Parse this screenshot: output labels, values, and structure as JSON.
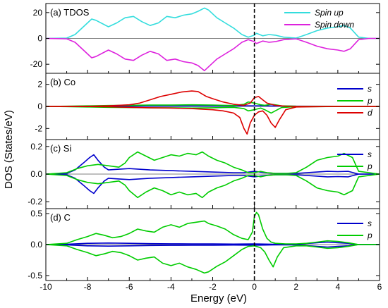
{
  "figure": {
    "xlabel": "Energy (eV)",
    "ylabel": "DOS (States/eV)",
    "x_ticks": [
      "-10",
      "-8",
      "-6",
      "-4",
      "-2",
      "0",
      "2",
      "4",
      "6"
    ]
  },
  "chart_data": [
    {
      "type": "line",
      "panel_label": "(a) TDOS",
      "xlim": [
        -10,
        6
      ],
      "ylim": [
        -27,
        27
      ],
      "y_ticks": [
        20,
        0,
        -20
      ],
      "y_tick_labels": [
        "20",
        "0",
        "-20"
      ],
      "fermi_level": 0,
      "legend_position": "top-right",
      "series": [
        {
          "name": "Spin up",
          "color": "#33dddd",
          "x": [
            -10,
            -9,
            -8.6,
            -8.2,
            -7.8,
            -7.6,
            -7,
            -6.6,
            -6.2,
            -5.8,
            -5.4,
            -5,
            -4.6,
            -4.2,
            -3.8,
            -3.4,
            -3,
            -2.7,
            -2.4,
            -2.2,
            -1.8,
            -1.4,
            -1,
            -0.6,
            -0.3,
            0,
            0.1,
            0.4,
            0.7,
            1,
            1.4,
            2,
            2.5,
            3,
            3.5,
            4,
            4.3,
            4.6,
            5,
            5.5,
            6
          ],
          "y": [
            0,
            0.3,
            3,
            9,
            15,
            14,
            9,
            12,
            16,
            17,
            13,
            10,
            12,
            17,
            16,
            18,
            19,
            21,
            23.5,
            22,
            16,
            12,
            8,
            3,
            1,
            2.5,
            4,
            2,
            3,
            2.5,
            1,
            0.3,
            3,
            6,
            8,
            9,
            10,
            8,
            1,
            0,
            0
          ]
        },
        {
          "name": "Spin down",
          "color": "#dd22dd",
          "x": [
            -10,
            -9,
            -8.6,
            -8.2,
            -7.8,
            -7.6,
            -7,
            -6.6,
            -6.2,
            -5.8,
            -5.4,
            -5,
            -4.6,
            -4.2,
            -3.8,
            -3.4,
            -3,
            -2.7,
            -2.4,
            -2.2,
            -1.8,
            -1.4,
            -1,
            -0.6,
            -0.3,
            0,
            0.1,
            0.4,
            0.7,
            1,
            1.4,
            2,
            2.5,
            3,
            3.5,
            4,
            4.3,
            4.6,
            5,
            5.5,
            6
          ],
          "y": [
            0,
            -0.3,
            -3,
            -9,
            -15,
            -14,
            -9,
            -12,
            -16,
            -17,
            -13,
            -10,
            -12,
            -17,
            -16,
            -18,
            -19,
            -21,
            -25,
            -22,
            -16,
            -12,
            -8,
            -3,
            -1,
            -2.5,
            -4,
            -2,
            -3,
            -2.5,
            -1,
            -0.3,
            -3,
            -6,
            -8,
            -9,
            -10,
            -8,
            -1,
            0,
            0
          ]
        }
      ]
    },
    {
      "type": "line",
      "panel_label": "(b) Co",
      "xlim": [
        -10,
        6
      ],
      "ylim": [
        -3,
        3
      ],
      "y_ticks": [
        2,
        0,
        -2
      ],
      "y_tick_labels": [
        "2",
        "0",
        "-2"
      ],
      "fermi_level": 0,
      "legend_position": "right",
      "series": [
        {
          "name": "s",
          "color": "#0000cc",
          "x": [
            -10,
            -8,
            -6,
            -4,
            -2,
            -1,
            0,
            0.5,
            1,
            2,
            4,
            6
          ],
          "y": [
            0,
            0.02,
            0.03,
            0.03,
            0.04,
            0.05,
            0.05,
            0.05,
            0.04,
            0.02,
            0.01,
            0
          ]
        },
        {
          "name": "p",
          "color": "#00cc00",
          "x": [
            -10,
            -9,
            -8,
            -7,
            -6,
            -5,
            -4,
            -3,
            -2,
            -1.5,
            -1,
            -0.5,
            -0.3,
            0,
            0.1,
            0.3,
            0.5,
            0.8,
            1,
            1.3,
            2,
            4,
            6
          ],
          "y": [
            0,
            0.02,
            0.05,
            0.08,
            0.1,
            0.12,
            0.12,
            0.15,
            0.12,
            0.1,
            0.08,
            0.2,
            0.4,
            0.3,
            0.25,
            0.15,
            0.1,
            0.2,
            0.15,
            0.05,
            0.02,
            0.01,
            0
          ]
        },
        {
          "name": "p (spin down)",
          "color": "#00cc00",
          "x": [
            -10,
            -9,
            -8,
            -7,
            -6,
            -5,
            -4,
            -3,
            -2,
            -1.5,
            -1,
            -0.5,
            -0.3,
            0,
            0.1,
            0.3,
            0.5,
            0.8,
            1,
            1.3,
            2,
            4,
            6
          ],
          "y": [
            0,
            -0.02,
            -0.05,
            -0.08,
            -0.1,
            -0.12,
            -0.12,
            -0.15,
            -0.12,
            -0.1,
            -0.08,
            -0.2,
            -0.4,
            -0.3,
            -0.25,
            -0.15,
            -0.3,
            -0.6,
            -0.4,
            -0.1,
            -0.02,
            -0.01,
            0
          ]
        },
        {
          "name": "d",
          "color": "#dd0000",
          "x": [
            -10,
            -8,
            -7,
            -6,
            -5.5,
            -5,
            -4.5,
            -4,
            -3.5,
            -3,
            -2.7,
            -2.3,
            -2,
            -1.5,
            -1,
            -0.5,
            -0.2,
            0,
            0.2,
            0.4,
            0.6,
            1,
            1.5,
            2,
            4,
            6
          ],
          "y": [
            0,
            0.01,
            0.05,
            0.15,
            0.3,
            0.6,
            0.9,
            1.1,
            1.3,
            1.4,
            1.35,
            0.9,
            0.7,
            0.4,
            0.2,
            0.1,
            0.3,
            0.8,
            0.9,
            0.6,
            0.3,
            0.1,
            0.02,
            0,
            0,
            0
          ]
        },
        {
          "name": "d (spin down)",
          "color": "#dd0000",
          "x": [
            -10,
            -8,
            -7,
            -6,
            -5,
            -4,
            -3,
            -2.5,
            -2,
            -1.5,
            -1,
            -0.7,
            -0.5,
            -0.35,
            -0.2,
            0,
            0.2,
            0.4,
            0.6,
            0.8,
            1,
            1.2,
            1.5,
            2,
            4,
            6
          ],
          "y": [
            0,
            -0.01,
            -0.03,
            -0.08,
            -0.12,
            -0.15,
            -0.2,
            -0.25,
            -0.3,
            -0.4,
            -0.6,
            -1,
            -2,
            -2.5,
            -1.5,
            -0.8,
            -0.5,
            -0.4,
            -0.8,
            -1.5,
            -1.9,
            -1.2,
            -0.3,
            -0.05,
            0,
            0
          ]
        }
      ]
    },
    {
      "type": "line",
      "panel_label": "(c) Si",
      "xlim": [
        -10,
        6
      ],
      "ylim": [
        -0.25,
        0.25
      ],
      "y_ticks": [
        0.2,
        0.0,
        -0.2
      ],
      "y_tick_labels": [
        "0.2",
        "0.0",
        "-0.2"
      ],
      "fermi_level": 0,
      "legend_position": "right",
      "series": [
        {
          "name": "s",
          "color": "#0000cc",
          "x": [
            -10,
            -9,
            -8.6,
            -8.2,
            -7.9,
            -7.7,
            -7.5,
            -7.2,
            -7,
            -6.5,
            -6,
            -5,
            -4,
            -3,
            -2,
            -1,
            -0.5,
            0,
            0.5,
            1,
            2,
            3,
            3.5,
            4,
            4.5,
            5,
            6
          ],
          "y": [
            0,
            0.005,
            0.03,
            0.08,
            0.12,
            0.14,
            0.1,
            0.05,
            0.03,
            0.035,
            0.04,
            0.03,
            0.025,
            0.02,
            0.015,
            0.01,
            0.01,
            0.02,
            0.01,
            0.005,
            0.005,
            0.015,
            0.02,
            0.018,
            0.02,
            0,
            0
          ]
        },
        {
          "name": "s (spin down)",
          "color": "#0000cc",
          "x": [
            -10,
            -9,
            -8.6,
            -8.2,
            -7.9,
            -7.7,
            -7.5,
            -7.2,
            -7,
            -6.5,
            -6,
            -5,
            -4,
            -3,
            -2,
            -1,
            -0.5,
            0,
            0.5,
            1,
            2,
            3,
            3.5,
            4,
            4.5,
            5,
            6
          ],
          "y": [
            0,
            -0.005,
            -0.03,
            -0.08,
            -0.12,
            -0.14,
            -0.1,
            -0.05,
            -0.03,
            -0.035,
            -0.04,
            -0.03,
            -0.025,
            -0.02,
            -0.015,
            -0.01,
            -0.01,
            -0.02,
            -0.01,
            -0.005,
            -0.005,
            -0.015,
            -0.02,
            -0.018,
            -0.02,
            0,
            0
          ]
        },
        {
          "name": "p",
          "color": "#00cc00",
          "x": [
            -10,
            -9,
            -8.5,
            -8,
            -7.5,
            -7,
            -6.5,
            -6.2,
            -6,
            -5.6,
            -5.2,
            -4.8,
            -4.4,
            -4,
            -3.6,
            -3.2,
            -2.8,
            -2.5,
            -2.2,
            -1.8,
            -1.4,
            -1,
            -0.6,
            -0.3,
            0,
            0.3,
            0.6,
            1,
            1.5,
            2,
            2.5,
            3,
            3.5,
            4,
            4.3,
            4.7,
            5,
            6
          ],
          "y": [
            0,
            0.01,
            0.04,
            0.06,
            0.07,
            0.06,
            0.05,
            0.08,
            0.12,
            0.16,
            0.13,
            0.1,
            0.12,
            0.14,
            0.13,
            0.15,
            0.14,
            0.16,
            0.13,
            0.1,
            0.08,
            0.05,
            0.03,
            0.01,
            0.01,
            0.02,
            0.01,
            0.005,
            0.005,
            0.01,
            0.05,
            0.1,
            0.12,
            0.13,
            0.15,
            0.12,
            0.02,
            0
          ]
        },
        {
          "name": "p (spin down)",
          "color": "#00cc00",
          "x": [
            -10,
            -9,
            -8.5,
            -8,
            -7.5,
            -7,
            -6.5,
            -6.2,
            -6,
            -5.6,
            -5.2,
            -4.8,
            -4.4,
            -4,
            -3.6,
            -3.2,
            -2.8,
            -2.5,
            -2.2,
            -1.8,
            -1.4,
            -1,
            -0.6,
            -0.3,
            0,
            0.3,
            0.6,
            1,
            1.5,
            2,
            2.5,
            3,
            3.5,
            4,
            4.3,
            4.7,
            5,
            6
          ],
          "y": [
            0,
            -0.01,
            -0.04,
            -0.06,
            -0.07,
            -0.06,
            -0.05,
            -0.08,
            -0.12,
            -0.17,
            -0.13,
            -0.1,
            -0.12,
            -0.15,
            -0.13,
            -0.15,
            -0.14,
            -0.17,
            -0.13,
            -0.1,
            -0.08,
            -0.05,
            -0.03,
            -0.01,
            -0.01,
            -0.02,
            -0.01,
            -0.005,
            -0.005,
            -0.01,
            -0.05,
            -0.1,
            -0.12,
            -0.13,
            -0.15,
            -0.12,
            -0.02,
            0
          ]
        }
      ]
    },
    {
      "type": "line",
      "panel_label": "(d) C",
      "xlim": [
        -10,
        6
      ],
      "ylim": [
        -0.58,
        0.58
      ],
      "y_ticks": [
        0.5,
        0.0,
        -0.5
      ],
      "y_tick_labels": [
        "0.5",
        "0.0",
        "-0.5"
      ],
      "fermi_level": 0,
      "legend_position": "right",
      "series": [
        {
          "name": "s",
          "color": "#0000cc",
          "x": [
            -10,
            -9,
            -8,
            -7,
            -6,
            -5,
            -4,
            -3,
            -2,
            -1,
            0,
            1,
            2,
            3,
            3.5,
            4,
            4.5,
            5,
            6
          ],
          "y": [
            0,
            0.005,
            0.02,
            0.025,
            0.02,
            0.015,
            0.012,
            0.01,
            0.01,
            0.008,
            0.01,
            0.005,
            0.005,
            0.03,
            0.04,
            0.03,
            0.02,
            0,
            0
          ]
        },
        {
          "name": "s (spin down)",
          "color": "#0000cc",
          "x": [
            -10,
            -9,
            -8,
            -7,
            -6,
            -5,
            -4,
            -3,
            -2,
            -1,
            0,
            1,
            2,
            3,
            3.5,
            4,
            4.5,
            5,
            6
          ],
          "y": [
            0,
            -0.005,
            -0.02,
            -0.025,
            -0.02,
            -0.015,
            -0.012,
            -0.01,
            -0.01,
            -0.008,
            -0.01,
            -0.005,
            -0.005,
            -0.03,
            -0.04,
            -0.03,
            -0.02,
            0,
            0
          ]
        },
        {
          "name": "p",
          "color": "#00cc00",
          "x": [
            -10,
            -9,
            -8.5,
            -8,
            -7.6,
            -7.2,
            -6.8,
            -6.4,
            -6,
            -5.6,
            -5.2,
            -4.8,
            -4.4,
            -4,
            -3.6,
            -3.2,
            -2.8,
            -2.4,
            -2.2,
            -1.8,
            -1.4,
            -1,
            -0.6,
            -0.3,
            -0.1,
            0,
            0.1,
            0.2,
            0.4,
            0.6,
            0.8,
            1,
            1.5,
            2,
            2.5,
            3,
            3.5,
            4,
            4.5,
            5,
            6
          ],
          "y": [
            0,
            0.02,
            0.08,
            0.13,
            0.18,
            0.15,
            0.11,
            0.13,
            0.18,
            0.25,
            0.22,
            0.2,
            0.28,
            0.32,
            0.28,
            0.34,
            0.36,
            0.38,
            0.34,
            0.3,
            0.25,
            0.16,
            0.1,
            0.08,
            0.2,
            0.45,
            0.52,
            0.48,
            0.25,
            0.1,
            0.04,
            0.02,
            0.01,
            0.01,
            0.02,
            0.04,
            0.06,
            0.05,
            0.03,
            0,
            0
          ]
        },
        {
          "name": "p (spin down)",
          "color": "#00cc00",
          "x": [
            -10,
            -9,
            -8.5,
            -8,
            -7.6,
            -7.2,
            -6.8,
            -6.4,
            -6,
            -5.6,
            -5.2,
            -4.8,
            -4.4,
            -4,
            -3.6,
            -3.2,
            -2.8,
            -2.4,
            -2.2,
            -1.8,
            -1.4,
            -1,
            -0.6,
            -0.3,
            0,
            0.3,
            0.5,
            0.7,
            0.9,
            1.1,
            1.4,
            2,
            2.5,
            3,
            3.5,
            4,
            4.5,
            5,
            6
          ],
          "y": [
            0,
            -0.02,
            -0.08,
            -0.13,
            -0.18,
            -0.15,
            -0.11,
            -0.13,
            -0.18,
            -0.25,
            -0.22,
            -0.2,
            -0.3,
            -0.34,
            -0.3,
            -0.36,
            -0.4,
            -0.46,
            -0.44,
            -0.35,
            -0.28,
            -0.18,
            -0.08,
            -0.03,
            -0.02,
            -0.05,
            -0.12,
            -0.25,
            -0.36,
            -0.2,
            -0.05,
            -0.02,
            -0.02,
            -0.04,
            -0.06,
            -0.05,
            -0.03,
            0,
            0
          ]
        }
      ]
    }
  ]
}
